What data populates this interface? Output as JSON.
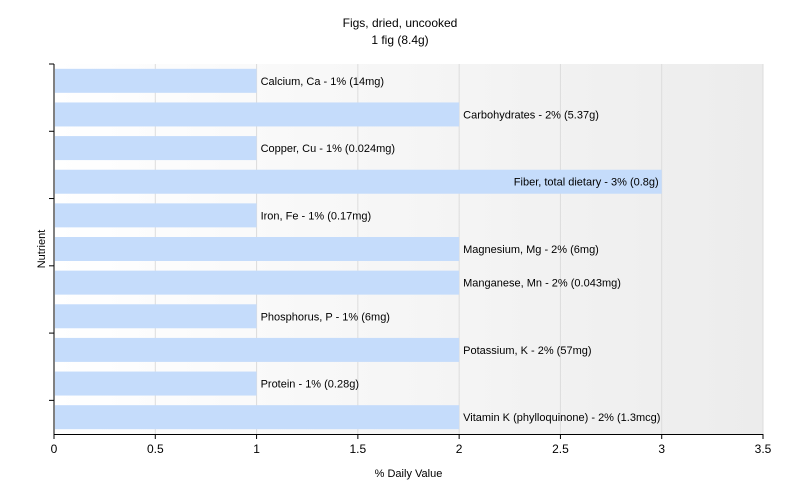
{
  "chart_data": {
    "type": "bar",
    "orientation": "horizontal",
    "title": "Figs, dried, uncooked",
    "subtitle": "1 fig (8.4g)",
    "xlabel": "% Daily Value",
    "ylabel": "Nutrient",
    "xlim": [
      0,
      3.5
    ],
    "xticks": [
      0,
      0.5,
      1,
      1.5,
      2,
      2.5,
      3,
      3.5
    ],
    "xtick_labels": [
      "0",
      "0.5",
      "1",
      "1.5",
      "2",
      "2.5",
      "3",
      "3.5"
    ],
    "grid": true,
    "bar_color": "#c5dcfb",
    "categories": [
      "Calcium, Ca",
      "Carbohydrates",
      "Copper, Cu",
      "Fiber, total dietary",
      "Iron, Fe",
      "Magnesium, Mg",
      "Manganese, Mn",
      "Phosphorus, P",
      "Potassium, K",
      "Protein",
      "Vitamin K (phylloquinone)"
    ],
    "values": [
      1,
      2,
      1,
      3,
      1,
      2,
      2,
      1,
      2,
      1,
      2
    ],
    "data_labels": [
      "Calcium, Ca - 1% (14mg)",
      "Carbohydrates - 2% (5.37g)",
      "Copper, Cu - 1% (0.024mg)",
      "Fiber, total dietary - 3% (0.8g)",
      "Iron, Fe - 1% (0.17mg)",
      "Magnesium, Mg - 2% (6mg)",
      "Manganese, Mn - 2% (0.043mg)",
      "Phosphorus, P - 1% (6mg)",
      "Potassium, K - 2% (57mg)",
      "Protein - 1% (0.28g)",
      "Vitamin K (phylloquinone) - 2% (1.3mcg)"
    ]
  }
}
